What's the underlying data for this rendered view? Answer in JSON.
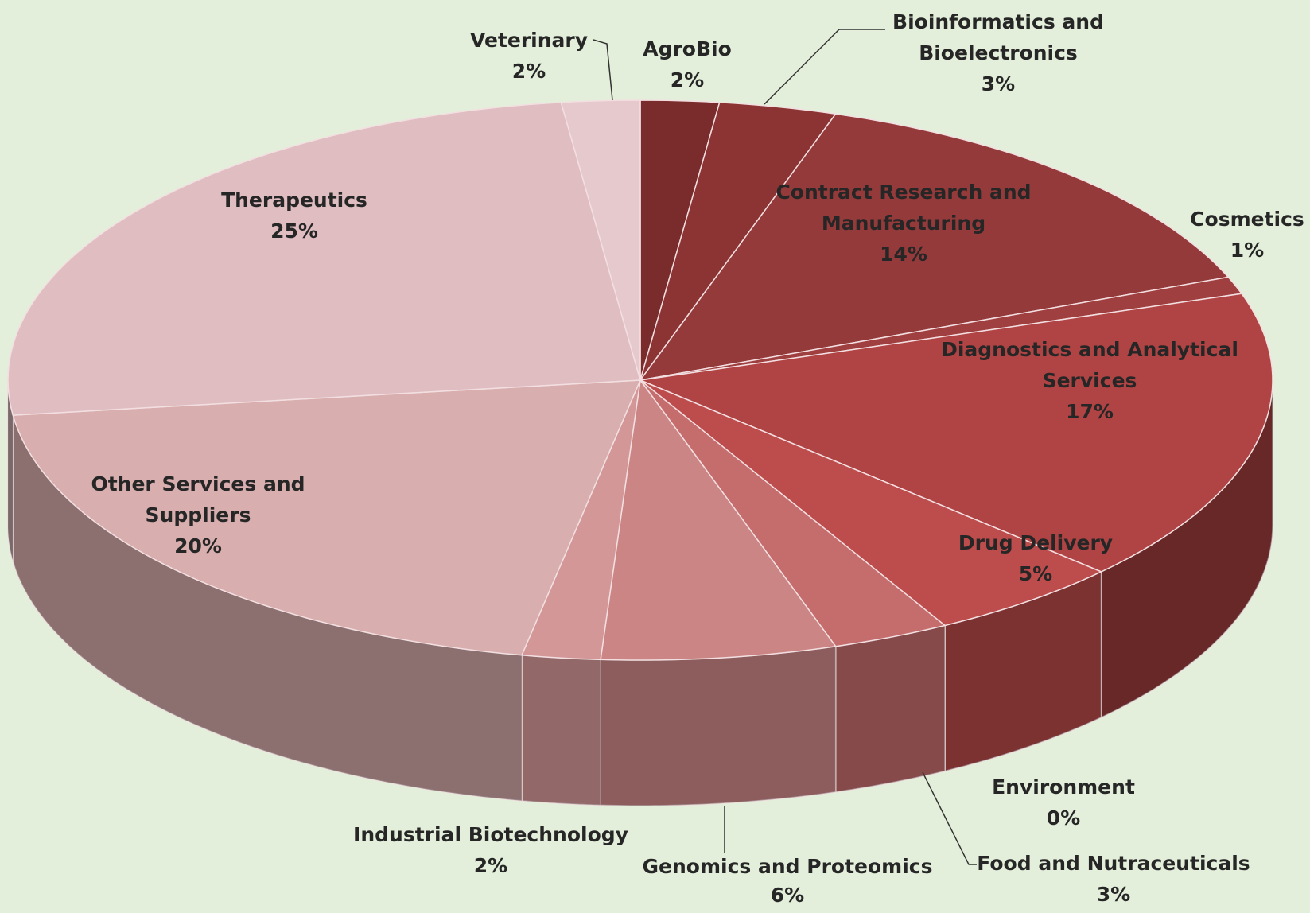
{
  "chart_data": {
    "type": "pie3d",
    "categories": [
      "AgroBio",
      "Bioinformatics and Bioelectronics",
      "Contract Research and Manufacturing",
      "Cosmetics",
      "Diagnostics and Analytical Services",
      "Environment",
      "Drug Delivery",
      "Food and Nutraceuticals",
      "Genomics and Proteomics",
      "Industrial Biotechnology",
      "Other Services and Suppliers",
      "Therapeutics",
      "Veterinary"
    ],
    "values": [
      2,
      3,
      14,
      1,
      17,
      0,
      5,
      3,
      6,
      2,
      20,
      25,
      2
    ],
    "value_labels": [
      "2%",
      "3%",
      "14%",
      "1%",
      "17%",
      "0%",
      "5%",
      "3%",
      "6%",
      "2%",
      "20%",
      "25%",
      "2%"
    ],
    "colors": [
      "#7a2c2c",
      "#8c3434",
      "#943a3a",
      "#a03f3f",
      "#b04444",
      "#b84848",
      "#bd4c4c",
      "#c56d6d",
      "#cc8585",
      "#d39797",
      "#d8aeae",
      "#dfbdc1",
      "#e6c9cd"
    ]
  }
}
